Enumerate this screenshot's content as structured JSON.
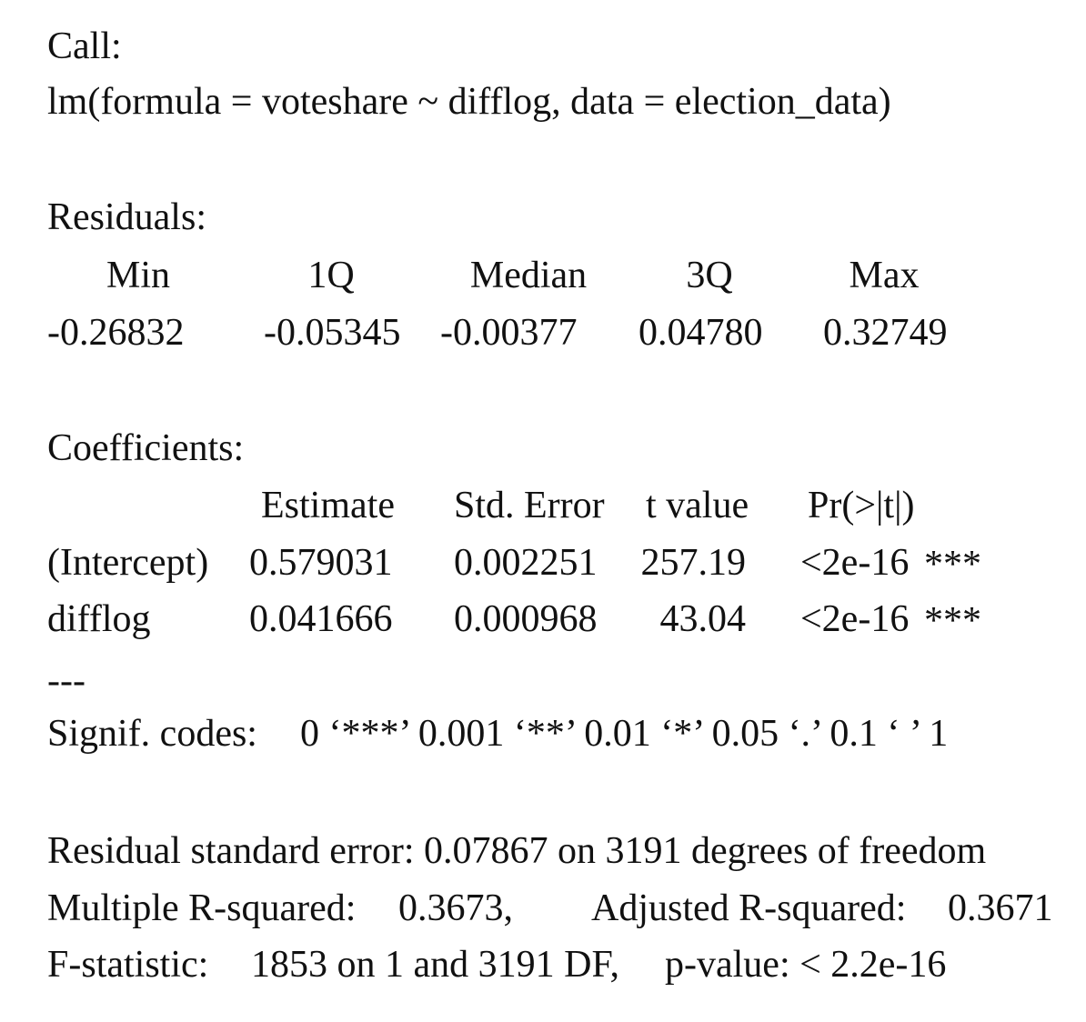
{
  "call": {
    "heading": "Call:",
    "formula": "lm(formula = voteshare ~ difflog, data = election_data)"
  },
  "residuals": {
    "heading": "Residuals:",
    "headers": [
      "Min",
      "1Q",
      "Median",
      "3Q",
      "Max"
    ],
    "values": [
      "-0.26832",
      "-0.05345",
      "-0.00377",
      "0.04780",
      "0.32749"
    ]
  },
  "coefficients": {
    "heading": "Coefficients:",
    "headers": [
      "Estimate",
      "Std. Error",
      "t value",
      "Pr(>|t|)"
    ],
    "rows": [
      {
        "term": "(Intercept)",
        "estimate": "0.579031",
        "std_error": "0.002251",
        "t_value": "257.19",
        "p_value": "<2e-16",
        "stars": "***"
      },
      {
        "term": "difflog",
        "estimate": "0.041666",
        "std_error": "0.000968",
        "t_value": "43.04",
        "p_value": "<2e-16",
        "stars": "***"
      }
    ]
  },
  "separator": "---",
  "signif": {
    "label": "Signif. codes:",
    "codes": "0 ‘***’ 0.001 ‘**’ 0.01 ‘*’ 0.05 ‘.’ 0.1 ‘ ’ 1"
  },
  "summary": {
    "rse": "Residual standard error: 0.07867 on 3191 degrees of freedom",
    "r2_label": "Multiple R-squared:",
    "r2_value": "0.3673,",
    "adj_r2_label": "Adjusted R-squared:",
    "adj_r2_value": "0.3671",
    "f_label": "F-statistic:",
    "f_value": "1853 on 1 and 3191 DF,",
    "p_label": "p-value: < 2.2e-16"
  }
}
